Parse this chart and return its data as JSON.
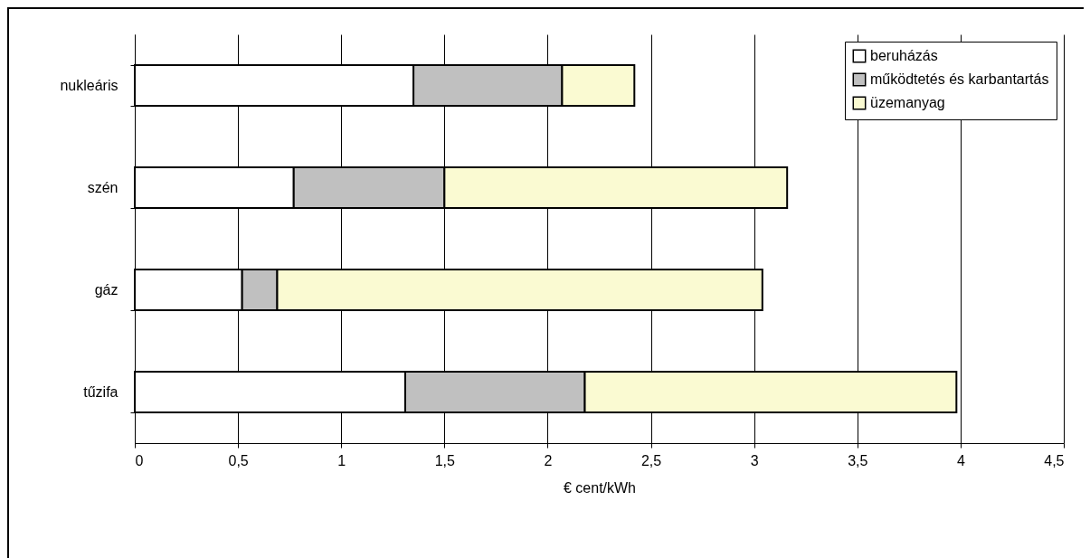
{
  "chart_data": {
    "type": "bar",
    "orientation": "horizontal",
    "stacked": true,
    "xlabel": "€ cent/kWh",
    "categories": [
      "nukleáris",
      "szén",
      "gáz",
      "tűzifa"
    ],
    "series": [
      {
        "name": "beruházás",
        "color": "#ffffff",
        "values": [
          1.35,
          0.77,
          0.52,
          1.31
        ]
      },
      {
        "name": "működtetés és karbantartás",
        "color": "#c0c0c0",
        "values": [
          0.72,
          0.73,
          0.17,
          0.87
        ]
      },
      {
        "name": "üzemanyag",
        "color": "#fafad2",
        "values": [
          0.35,
          1.66,
          2.35,
          1.8
        ]
      }
    ],
    "xlim": [
      0,
      4.5
    ],
    "xticks": [
      0,
      {
        "value": 0.5,
        "label": "0,5"
      },
      1,
      {
        "value": 1.5,
        "label": "1,5"
      },
      2,
      {
        "value": 2.5,
        "label": "2,5"
      },
      3,
      {
        "value": 3.5,
        "label": "3,5"
      },
      4,
      {
        "value": 4.5,
        "label": "4,5"
      }
    ],
    "grid": "x",
    "legend": "top right"
  }
}
